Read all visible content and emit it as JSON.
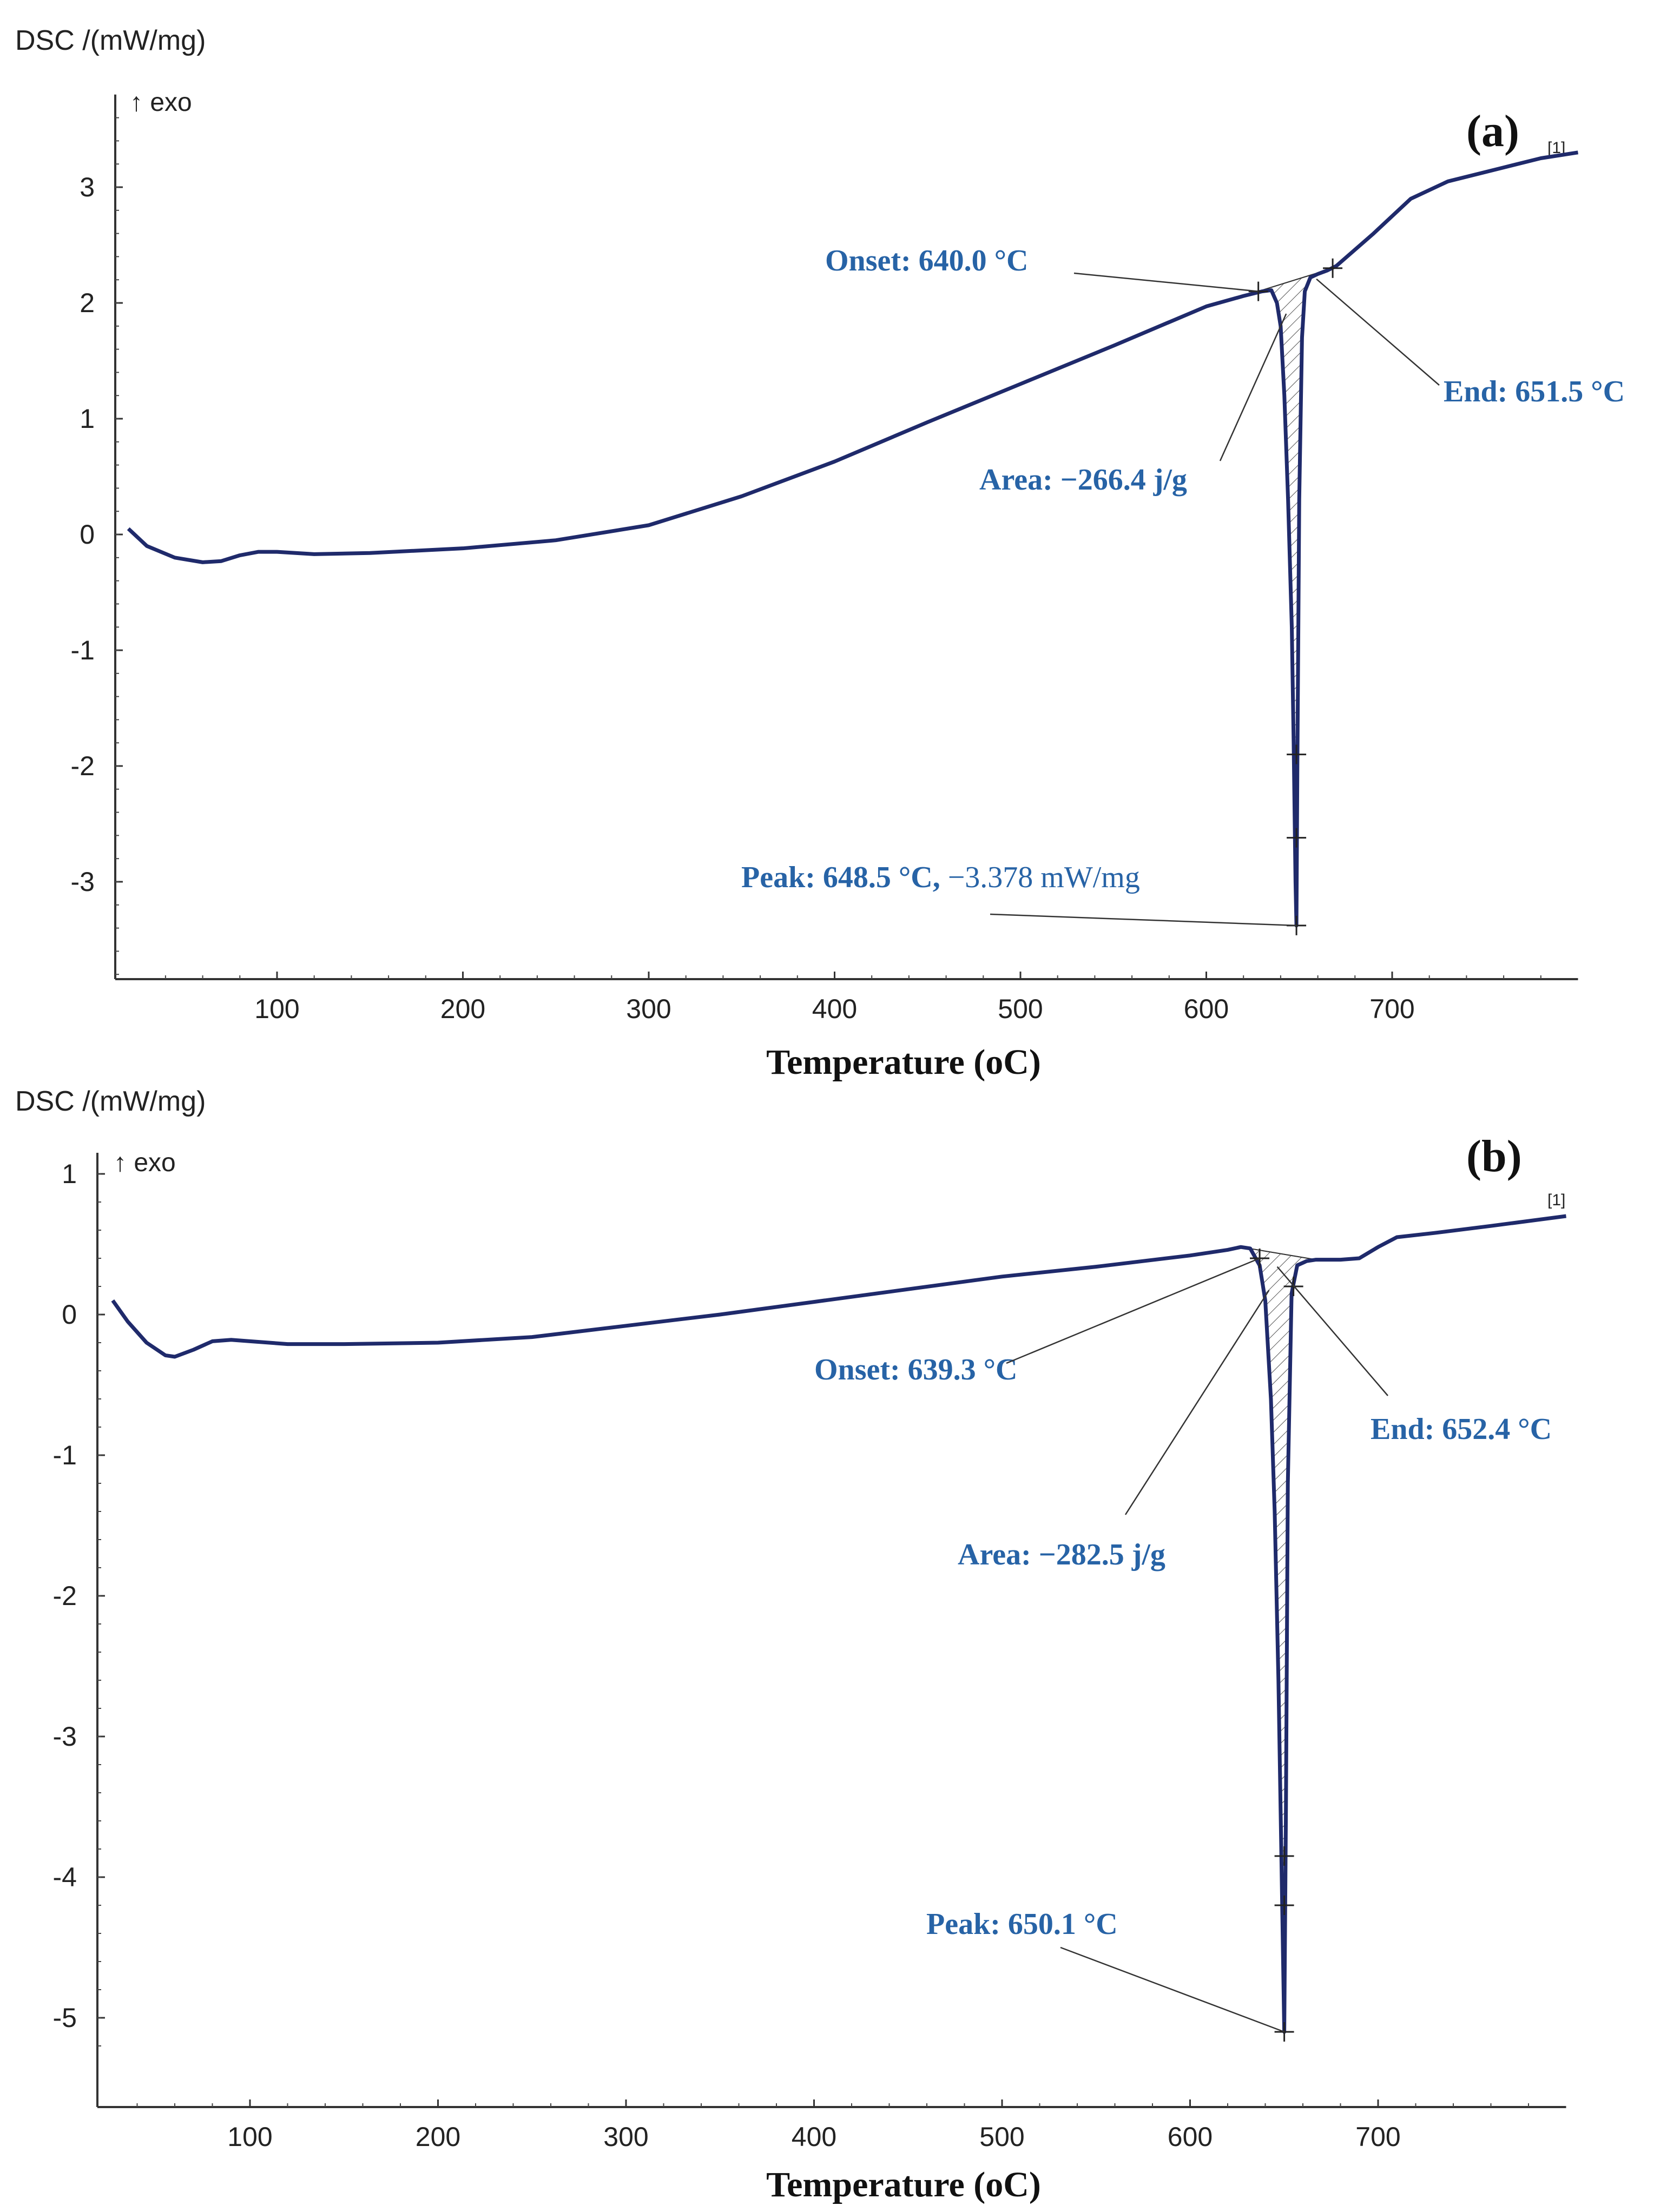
{
  "chart_data": [
    {
      "type": "line",
      "panel_label": "(a)",
      "ylabel": "DSC /(mW/mg)",
      "exo_label": "↑ exo",
      "xlabel": "Temperature (oC)",
      "xlim": [
        20,
        800
      ],
      "ylim": [
        -3.8,
        3.8
      ],
      "x_ticks": [
        100,
        200,
        300,
        400,
        500,
        600,
        700
      ],
      "x_tick_labels": [
        "100",
        "200",
        "300",
        "400",
        "500",
        "600",
        "700"
      ],
      "y_ticks": [
        3,
        2,
        1,
        0,
        -1,
        -2,
        -3
      ],
      "y_tick_labels": [
        "3",
        "2",
        "1",
        "0",
        "-1",
        "-2",
        "-3"
      ],
      "curve_tag": "[1]",
      "series": [
        {
          "name": "DSC",
          "x": [
            20,
            30,
            45,
            60,
            70,
            80,
            90,
            100,
            120,
            150,
            200,
            250,
            300,
            350,
            400,
            450,
            500,
            550,
            600,
            620,
            630,
            635,
            638,
            640,
            642,
            644,
            646,
            647,
            648,
            648.5,
            649,
            650,
            651.5,
            653,
            656,
            660,
            665,
            670,
            690,
            710,
            730,
            760,
            780,
            800
          ],
          "y": [
            0.05,
            -0.1,
            -0.2,
            -0.24,
            -0.23,
            -0.18,
            -0.15,
            -0.15,
            -0.17,
            -0.16,
            -0.12,
            -0.05,
            0.08,
            0.33,
            0.63,
            0.97,
            1.3,
            1.63,
            1.97,
            2.06,
            2.1,
            2.11,
            2.0,
            1.8,
            1.2,
            0.3,
            -0.8,
            -1.8,
            -3.0,
            -3.378,
            -2.0,
            0.3,
            1.7,
            2.1,
            2.22,
            2.25,
            2.28,
            2.32,
            2.6,
            2.9,
            3.05,
            3.17,
            3.25,
            3.3
          ]
        }
      ],
      "annotations": {
        "onset": {
          "text": "Onset: 640.0 °C",
          "x": 628,
          "y": 2.1
        },
        "end": {
          "text": "End: 651.5 °C",
          "x": 668,
          "y": 2.3
        },
        "area": {
          "text": "Area: −266.4 j/g",
          "x": 643,
          "y": 2.0
        },
        "peak": {
          "text": "Peak: 648.5 °C,",
          "value_text": " −3.378 mW/mg",
          "x": 648.5,
          "y": -3.378
        }
      },
      "baseline": {
        "x": [
          628,
          668
        ],
        "y": [
          2.1,
          2.3
        ]
      },
      "markers": [
        [
          648.5,
          -1.9
        ],
        [
          648.5,
          -2.62
        ]
      ]
    },
    {
      "type": "line",
      "panel_label": "(b)",
      "ylabel": "DSC /(mW/mg)",
      "exo_label": "↑ exo",
      "xlabel": "Temperature (oC)",
      "xlim": [
        20,
        800
      ],
      "ylim": [
        -5.35,
        1.15
      ],
      "x_ticks": [
        100,
        200,
        300,
        400,
        500,
        600,
        700
      ],
      "x_tick_labels": [
        "100",
        "200",
        "300",
        "400",
        "500",
        "600",
        "700"
      ],
      "y_ticks": [
        1,
        0,
        -1,
        -2,
        -3,
        -4,
        -5
      ],
      "y_tick_labels": [
        "1",
        "0",
        "-1",
        "-2",
        "-3",
        "-4",
        "-5"
      ],
      "curve_tag": "[1]",
      "series": [
        {
          "name": "DSC",
          "x": [
            27,
            35,
            45,
            55,
            60,
            70,
            80,
            90,
            100,
            120,
            150,
            200,
            250,
            300,
            350,
            400,
            450,
            500,
            550,
            600,
            620,
            627,
            632,
            637,
            640,
            643,
            645,
            647,
            648.5,
            650.1,
            651,
            652,
            654,
            657,
            662,
            667,
            680,
            690,
            700,
            710,
            730,
            760,
            800
          ],
          "y": [
            0.1,
            -0.05,
            -0.2,
            -0.29,
            -0.3,
            -0.25,
            -0.19,
            -0.18,
            -0.19,
            -0.21,
            -0.21,
            -0.2,
            -0.16,
            -0.08,
            0.0,
            0.09,
            0.18,
            0.27,
            0.34,
            0.42,
            0.46,
            0.48,
            0.47,
            0.35,
            0.1,
            -0.6,
            -1.4,
            -2.6,
            -3.8,
            -5.1,
            -3.5,
            -1.2,
            0.15,
            0.35,
            0.38,
            0.39,
            0.39,
            0.4,
            0.48,
            0.55,
            0.58,
            0.63,
            0.7
          ]
        }
      ],
      "annotations": {
        "onset": {
          "text": "Onset: 639.3 °C",
          "x": 637,
          "y": 0.4
        },
        "end": {
          "text": "End: 652.4 °C",
          "x": 655,
          "y": 0.2
        },
        "area": {
          "text": "Area: −282.5 j/g",
          "x": 642,
          "y": 0.25
        },
        "peak": {
          "text": "Peak: 650.1 °C",
          "x": 650.1,
          "y": -5.1
        }
      },
      "baseline": {
        "x": [
          627,
          667
        ],
        "y": [
          0.48,
          0.39
        ]
      },
      "markers": [
        [
          650.1,
          -3.85
        ],
        [
          650.1,
          -4.2
        ]
      ]
    }
  ]
}
